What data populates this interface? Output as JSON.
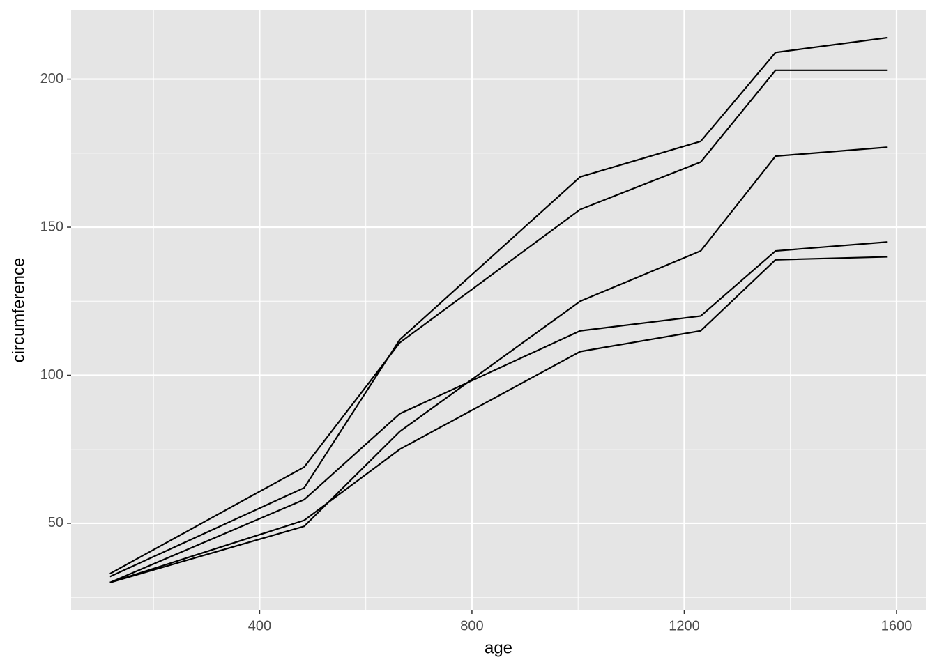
{
  "chart_data": {
    "type": "line",
    "xlabel": "age",
    "ylabel": "circumference",
    "x": [
      118,
      484,
      664,
      1004,
      1231,
      1372,
      1582
    ],
    "series": [
      {
        "color": "#000000",
        "values": [
          30,
          58,
          87,
          115,
          120,
          142,
          145
        ]
      },
      {
        "color": "#000000",
        "values": [
          33,
          69,
          111,
          156,
          172,
          203,
          203
        ]
      },
      {
        "color": "#000000",
        "values": [
          30,
          51,
          75,
          108,
          115,
          139,
          140
        ]
      },
      {
        "color": "#000000",
        "values": [
          32,
          62,
          112,
          167,
          179,
          209,
          214
        ]
      },
      {
        "color": "#000000",
        "values": [
          30,
          49,
          81,
          125,
          142,
          174,
          177
        ]
      }
    ],
    "xlim": [
      44.8,
      1655.2
    ],
    "xticks": [
      400,
      800,
      1200,
      1600
    ],
    "ylim": [
      20.8,
      223.2
    ],
    "yticks": [
      50,
      100,
      150,
      200
    ],
    "grid": true
  }
}
